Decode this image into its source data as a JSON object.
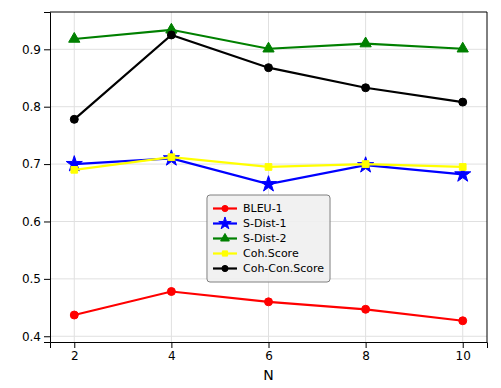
{
  "chart_data": {
    "type": "line",
    "xlabel": "N",
    "x": [
      2,
      4,
      6,
      8,
      10
    ],
    "xlim": [
      1.5,
      10.5
    ],
    "xticks": [
      2,
      4,
      6,
      8,
      10
    ],
    "ylim": [
      0.39,
      0.965
    ],
    "yticks": [
      0.4,
      0.5,
      0.6,
      0.7,
      0.8,
      0.9
    ],
    "grid": true,
    "legend": "lower center",
    "series": [
      {
        "name": "BLEU-1",
        "color": "#ff0000",
        "marker": "circle",
        "values": [
          0.437,
          0.478,
          0.46,
          0.447,
          0.427
        ]
      },
      {
        "name": "S-Dist-1",
        "color": "#0000ff",
        "marker": "star",
        "values": [
          0.7,
          0.71,
          0.665,
          0.698,
          0.682
        ]
      },
      {
        "name": "S-Dist-2",
        "color": "#008000",
        "marker": "triangle",
        "values": [
          0.918,
          0.934,
          0.901,
          0.91,
          0.901
        ]
      },
      {
        "name": "Coh.Score",
        "color": "#ffff00",
        "marker": "square",
        "values": [
          0.69,
          0.712,
          0.695,
          0.7,
          0.695
        ]
      },
      {
        "name": "Coh-Con.Score",
        "color": "#000000",
        "marker": "circle",
        "values": [
          0.778,
          0.925,
          0.868,
          0.833,
          0.808
        ]
      }
    ]
  }
}
